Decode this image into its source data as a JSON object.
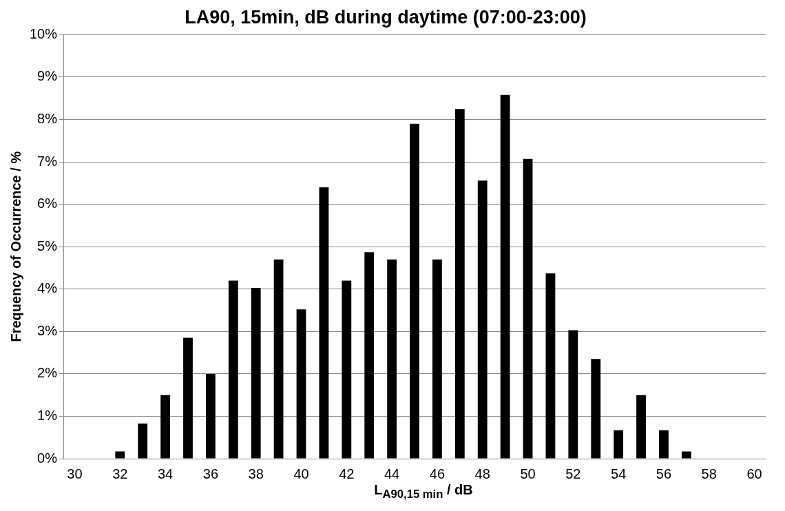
{
  "chart_data": {
    "type": "bar",
    "title": "LA90, 15min, dB during daytime (07:00-23:00)",
    "xlabel": "L$_{A90,15 min}$ / dB",
    "ylabel": "Frequency of Occurrence / %",
    "categories": [
      "30",
      null,
      "32",
      null,
      "34",
      null,
      "36",
      null,
      "38",
      null,
      "40",
      null,
      "42",
      null,
      "44",
      null,
      "46",
      null,
      "48",
      null,
      "50",
      null,
      "52",
      null,
      "54",
      null,
      "56",
      null,
      "58",
      null,
      "60"
    ],
    "values": [
      0,
      0,
      0.17,
      0.83,
      1.5,
      2.85,
      2.0,
      4.2,
      4.03,
      4.7,
      3.52,
      6.4,
      4.2,
      4.87,
      4.7,
      7.9,
      4.7,
      8.25,
      6.56,
      8.58,
      7.07,
      4.37,
      3.03,
      2.35,
      0.67,
      1.5,
      0.67,
      0.17,
      0,
      0,
      0
    ],
    "color": "#000000",
    "ylim": [
      0,
      10
    ],
    "yticks": [
      {
        "value": 0,
        "label": "0%"
      },
      {
        "value": 1,
        "label": "1%"
      },
      {
        "value": 2,
        "label": "2%"
      },
      {
        "value": 3,
        "label": "3%"
      },
      {
        "value": 4,
        "label": "4%"
      },
      {
        "value": 5,
        "label": "5%"
      },
      {
        "value": 6,
        "label": "6%"
      },
      {
        "value": 7,
        "label": "7%"
      },
      {
        "value": 8,
        "label": "8%"
      },
      {
        "value": 9,
        "label": "9%"
      },
      {
        "value": 10,
        "label": "10%"
      }
    ],
    "grid": "y",
    "legend": false
  }
}
